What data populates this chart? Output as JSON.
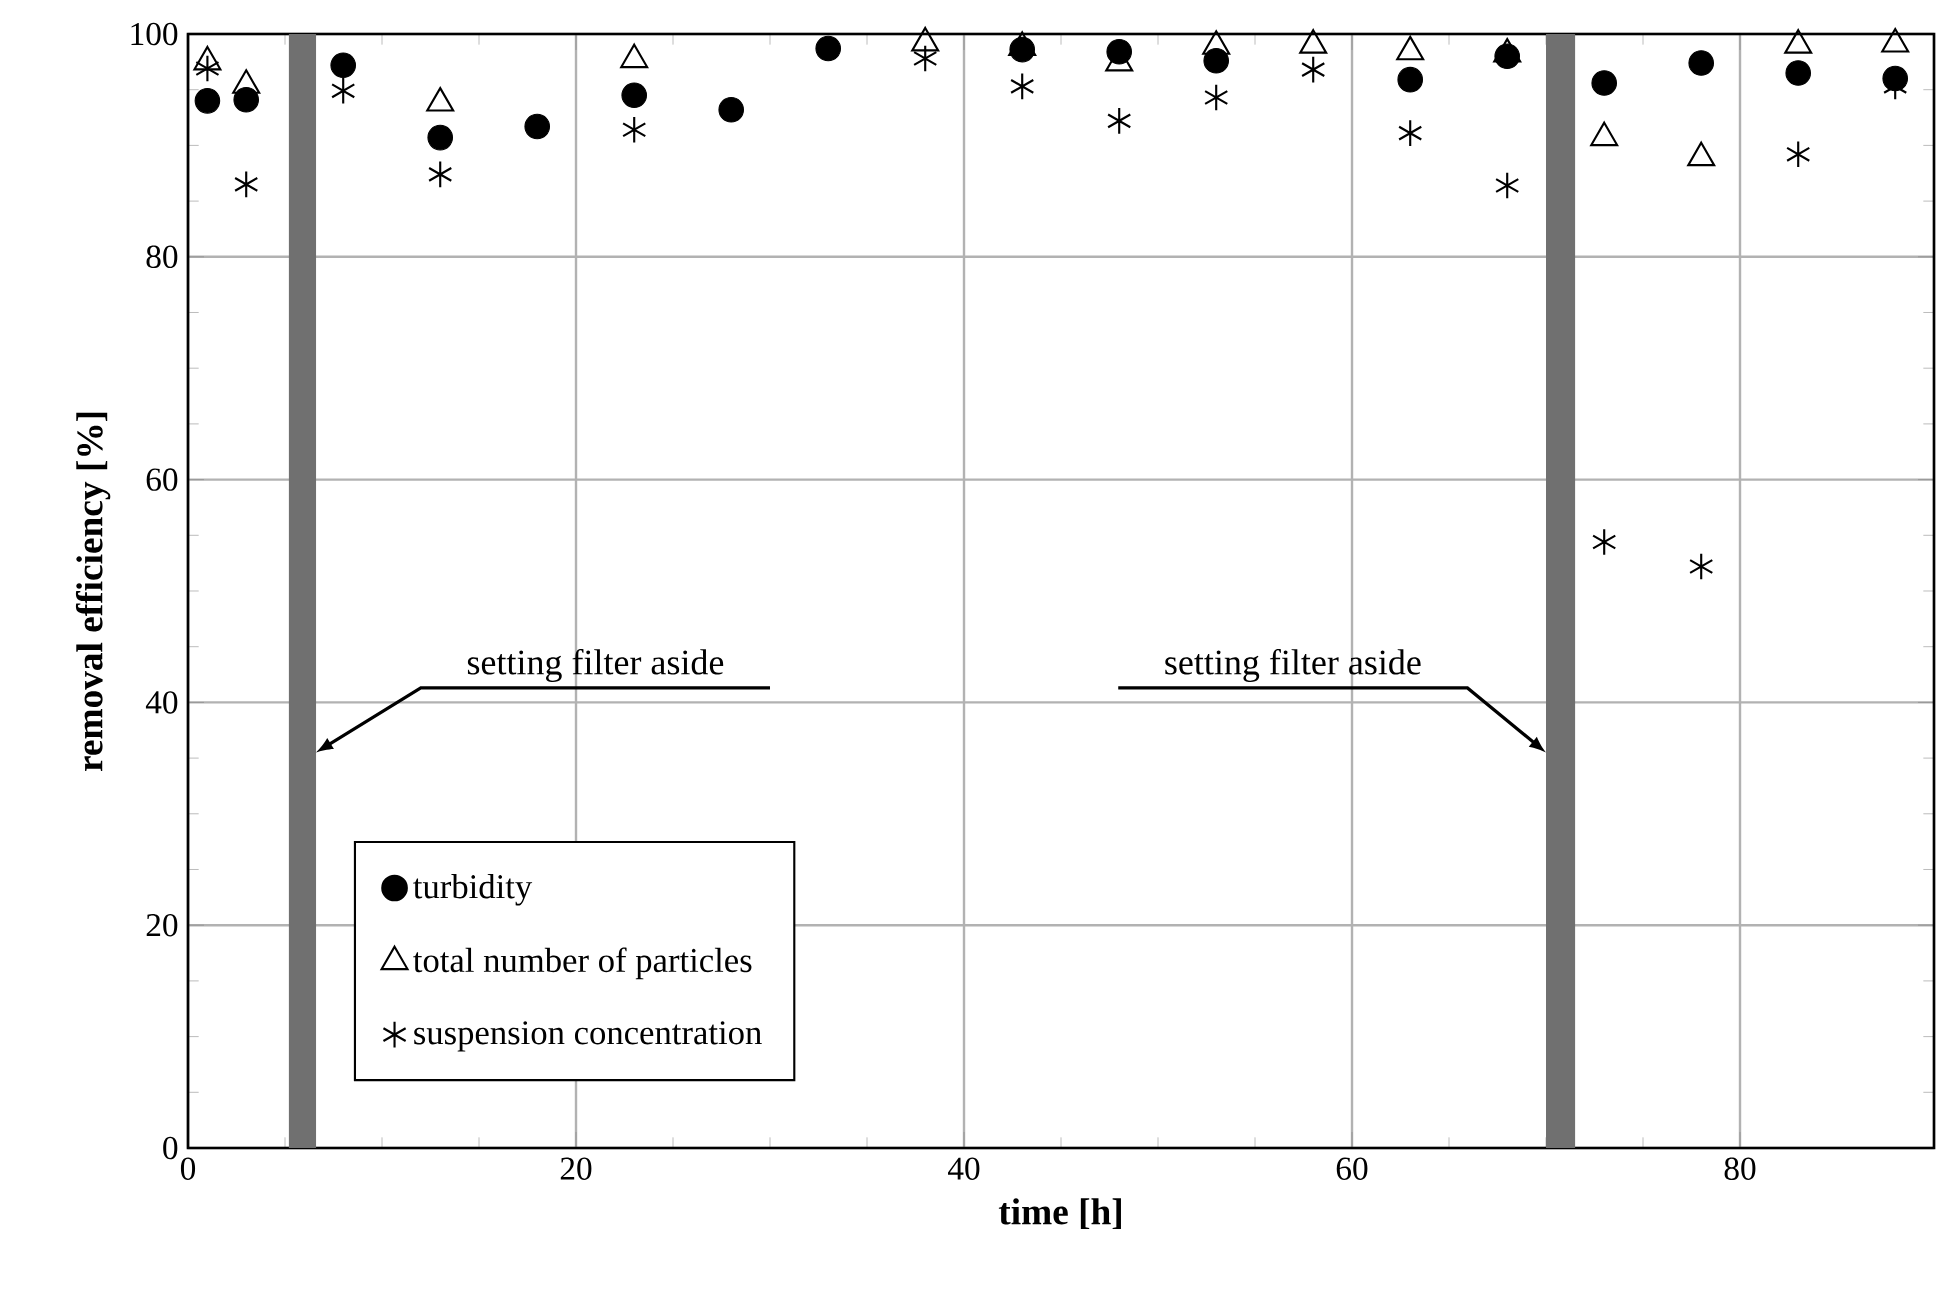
{
  "chart_data": {
    "type": "scatter",
    "xlabel": "time [h]",
    "ylabel": "removal efficiency [%]",
    "x": [
      1,
      3,
      8,
      13,
      18,
      23,
      28,
      33,
      38,
      43,
      48,
      53,
      58,
      63,
      68,
      73,
      78,
      83,
      88
    ],
    "series": [
      {
        "name": "turbidity",
        "color": "#000000",
        "marker": "circle",
        "values": [
          94.0,
          94.1,
          97.2,
          90.7,
          91.7,
          94.5,
          93.2,
          98.7,
          null,
          98.6,
          98.4,
          97.6,
          null,
          95.9,
          98.0,
          95.6,
          97.4,
          96.5,
          96.0
        ]
      },
      {
        "name": "total number of particles",
        "color": "#000000",
        "marker": "triangle",
        "values": [
          97.5,
          95.4,
          null,
          93.8,
          null,
          97.7,
          null,
          null,
          99.2,
          98.8,
          97.4,
          98.9,
          99.0,
          98.4,
          98.2,
          90.7,
          88.9,
          99.0,
          99.1
        ]
      },
      {
        "name": "suspension concentration",
        "color": "#000000",
        "marker": "cross",
        "values": [
          96.9,
          86.5,
          94.9,
          87.4,
          null,
          91.4,
          null,
          null,
          97.8,
          95.3,
          92.2,
          94.3,
          96.8,
          91.1,
          86.4,
          54.4,
          52.2,
          89.2,
          95.3
        ]
      }
    ],
    "xlim": [
      0,
      90
    ],
    "xticks": [
      0,
      20,
      40,
      60,
      80
    ],
    "ylim": [
      0,
      100
    ],
    "yticks": [
      0,
      20,
      40,
      60,
      80,
      100
    ],
    "grid": true,
    "legend": "bottom left",
    "bands": [
      {
        "axis": "x",
        "from": 5.2,
        "to": 6.6,
        "label": "setting filter aside",
        "color": "#707070"
      },
      {
        "axis": "x",
        "from": 70.0,
        "to": 71.5,
        "label": "setting filter aside",
        "color": "#707070"
      }
    ]
  }
}
